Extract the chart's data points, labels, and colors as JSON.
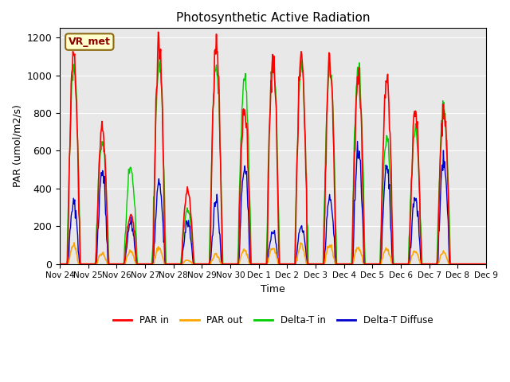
{
  "title": "Photosynthetic Active Radiation",
  "ylabel": "PAR (umol/m2/s)",
  "xlabel": "Time",
  "annotation": "VR_met",
  "legend": [
    "PAR in",
    "PAR out",
    "Delta-T in",
    "Delta-T Diffuse"
  ],
  "colors": {
    "PAR in": "#ff0000",
    "PAR out": "#ffa500",
    "Delta-T in": "#00cc00",
    "Delta-T Diffuse": "#0000cc"
  },
  "ylim": [
    0,
    1250
  ],
  "background_color": "#e8e8e8",
  "tick_labels": [
    "Nov 24",
    "Nov 25",
    "Nov 26",
    "Nov 27",
    "Nov 28",
    "Nov 29",
    "Nov 30",
    "Dec 1",
    "Dec 2",
    "Dec 3",
    "Dec 4",
    "Dec 5",
    "Dec 6",
    "Dec 7",
    "Dec 8",
    "Dec 9"
  ],
  "day_peaks_PAR_in": [
    1130,
    730,
    260,
    1160,
    395,
    1150,
    825,
    1080,
    1120,
    1075,
    975,
    980,
    815,
    830,
    0
  ],
  "day_peaks_PAR_out": [
    100,
    55,
    70,
    85,
    20,
    50,
    75,
    85,
    100,
    95,
    85,
    80,
    65,
    60,
    0
  ],
  "day_peaks_Delta_in": [
    1050,
    650,
    500,
    1060,
    280,
    1060,
    1000,
    1060,
    1055,
    1050,
    1040,
    665,
    700,
    830,
    0
  ],
  "day_peaks_Delta_dif": [
    320,
    490,
    220,
    420,
    220,
    320,
    510,
    175,
    200,
    350,
    580,
    500,
    340,
    550,
    0
  ]
}
